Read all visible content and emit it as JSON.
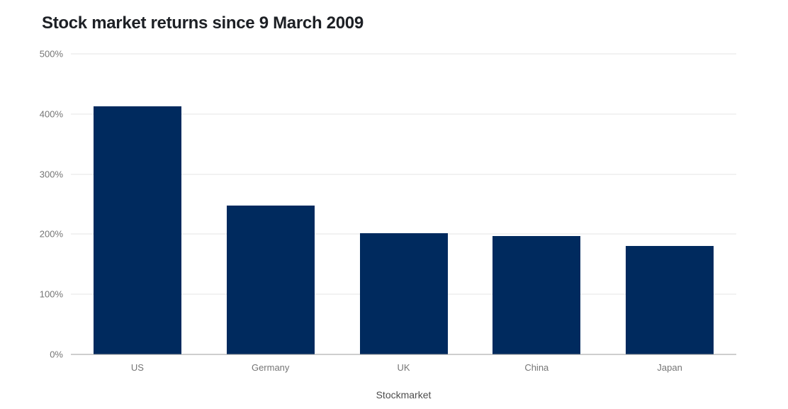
{
  "chart_data": {
    "type": "bar",
    "title": "Stock market returns since 9 March 2009",
    "xlabel": "Stockmarket",
    "ylabel": "",
    "categories": [
      "US",
      "Germany",
      "UK",
      "China",
      "Japan"
    ],
    "values": [
      413,
      248,
      202,
      197,
      180
    ],
    "unit": "%",
    "ylim": [
      0,
      500
    ],
    "yticks": [
      0,
      100,
      200,
      300,
      400,
      500
    ],
    "ytick_labels": [
      "0%",
      "100%",
      "200%",
      "300%",
      "400%",
      "500%"
    ],
    "grid": true,
    "legend": "none",
    "bar_color": "#002a5e"
  },
  "colors": {
    "background": "#ffffff",
    "title_text": "#1d2025",
    "bar": "#002a5e",
    "gridline": "#e6e6e6",
    "baseline": "#9e9e9e",
    "axis_text": "#757575",
    "axis_title_text": "#4d4d4d"
  }
}
